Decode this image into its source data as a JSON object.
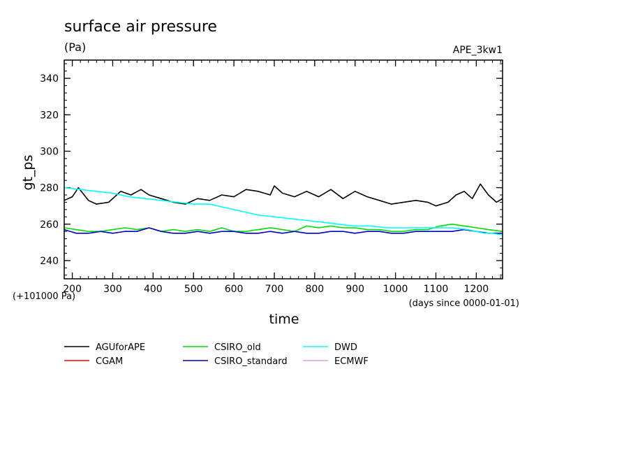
{
  "chart_data": {
    "type": "line",
    "title": "surface air pressure",
    "units": "(Pa)",
    "run_label": "APE_3kw1",
    "xlabel": "time",
    "ylabel": "gt_ps",
    "y_offset_note": "(+101000 Pa)",
    "x_unit_note": "(days since 0000-01-01)",
    "xlim": [
      180,
      1265
    ],
    "ylim": [
      230,
      350
    ],
    "x_ticks": [
      200,
      300,
      400,
      500,
      600,
      700,
      800,
      900,
      1000,
      1100,
      1200
    ],
    "y_ticks": [
      240,
      260,
      280,
      300,
      320,
      340
    ],
    "grid": false,
    "legend_position": "bottom-left",
    "series": [
      {
        "name": "AGUforAPE",
        "color": "#000000",
        "x": [
          180,
          200,
          215,
          240,
          260,
          290,
          320,
          345,
          370,
          390,
          420,
          450,
          480,
          510,
          540,
          570,
          600,
          630,
          660,
          690,
          700,
          720,
          750,
          780,
          810,
          840,
          870,
          900,
          930,
          960,
          990,
          1020,
          1050,
          1080,
          1100,
          1130,
          1150,
          1170,
          1190,
          1210,
          1230,
          1250,
          1265
        ],
        "y": [
          273,
          275,
          280,
          273,
          271,
          272,
          278,
          276,
          279,
          276,
          274,
          272,
          271,
          274,
          273,
          276,
          275,
          279,
          278,
          276,
          281,
          277,
          275,
          278,
          275,
          279,
          274,
          278,
          275,
          273,
          271,
          272,
          273,
          272,
          270,
          272,
          276,
          278,
          274,
          282,
          276,
          272,
          274
        ]
      },
      {
        "name": "CGAM",
        "color": "#ff0000",
        "x": [],
        "y": []
      },
      {
        "name": "CSIRO_old",
        "color": "#00dd00",
        "x": [
          180,
          210,
          240,
          270,
          300,
          330,
          360,
          390,
          420,
          450,
          480,
          510,
          540,
          570,
          600,
          630,
          660,
          690,
          720,
          750,
          780,
          810,
          840,
          870,
          900,
          930,
          960,
          990,
          1020,
          1050,
          1080,
          1110,
          1140,
          1170,
          1200,
          1230,
          1265
        ],
        "y": [
          258,
          257,
          256,
          256,
          257,
          258,
          257,
          258,
          256,
          257,
          256,
          257,
          256,
          258,
          256,
          256,
          257,
          258,
          257,
          256,
          259,
          258,
          259,
          258,
          258,
          257,
          257,
          256,
          256,
          257,
          257,
          259,
          260,
          259,
          258,
          257,
          256
        ]
      },
      {
        "name": "CSIRO_standard",
        "color": "#0000cc",
        "x": [
          180,
          210,
          240,
          270,
          300,
          330,
          360,
          390,
          420,
          450,
          480,
          510,
          540,
          570,
          600,
          630,
          660,
          690,
          720,
          750,
          780,
          810,
          840,
          870,
          900,
          930,
          960,
          990,
          1020,
          1050,
          1080,
          1110,
          1140,
          1170,
          1200,
          1230,
          1265
        ],
        "y": [
          257,
          255,
          255,
          256,
          255,
          256,
          256,
          258,
          256,
          255,
          255,
          256,
          255,
          256,
          256,
          255,
          255,
          256,
          255,
          256,
          255,
          255,
          256,
          256,
          255,
          256,
          256,
          255,
          255,
          256,
          256,
          256,
          256,
          257,
          256,
          255,
          255
        ]
      },
      {
        "name": "DWD",
        "color": "#00ffff",
        "x": [
          180,
          220,
          260,
          300,
          340,
          380,
          420,
          460,
          500,
          540,
          580,
          620,
          660,
          700,
          740,
          780,
          820,
          860,
          900,
          940,
          980,
          1020,
          1060,
          1100,
          1140,
          1180,
          1220,
          1240,
          1265
        ],
        "y": [
          280,
          279,
          278,
          277,
          275,
          274,
          273,
          272,
          271,
          271,
          269,
          267,
          265,
          264,
          263,
          262,
          261,
          260,
          259,
          259,
          258,
          258,
          258,
          258,
          258,
          257,
          255,
          255,
          254
        ]
      },
      {
        "name": "ECMWF",
        "color": "#dd99dd",
        "x": [],
        "y": []
      }
    ]
  }
}
